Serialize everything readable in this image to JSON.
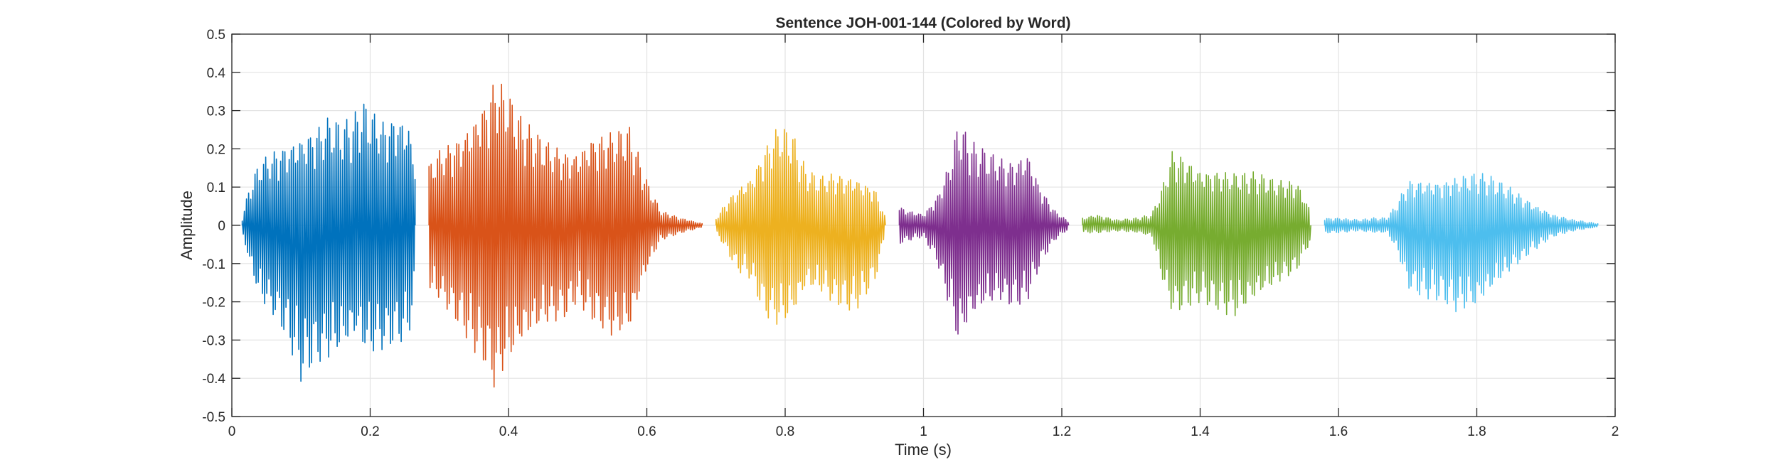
{
  "chart_data": {
    "type": "line",
    "title": "Sentence JOH-001-144 (Colored by Word)",
    "xlabel": "Time (s)",
    "ylabel": "Amplitude",
    "xlim": [
      0,
      2
    ],
    "ylim": [
      -0.5,
      0.5
    ],
    "xticks": [
      0,
      0.2,
      0.4,
      0.6,
      0.8,
      1,
      1.2,
      1.4,
      1.6,
      1.8,
      2
    ],
    "xtick_labels": [
      "0",
      "0.2",
      "0.4",
      "0.6",
      "0.8",
      "1",
      "1.2",
      "1.4",
      "1.6",
      "1.8",
      "2"
    ],
    "yticks": [
      -0.5,
      -0.4,
      -0.3,
      -0.2,
      -0.1,
      0,
      0.1,
      0.2,
      0.3,
      0.4,
      0.5
    ],
    "ytick_labels": [
      "-0.5",
      "-0.4",
      "-0.3",
      "-0.2",
      "-0.1",
      "0",
      "0.1",
      "0.2",
      "0.3",
      "0.4",
      "0.5"
    ],
    "grid": true,
    "legend": false,
    "series": [
      {
        "color": "#0072BD",
        "start": 0.015,
        "end": 0.265,
        "envelope": {
          "t": [
            0.015,
            0.025,
            0.04,
            0.06,
            0.08,
            0.1,
            0.12,
            0.14,
            0.16,
            0.18,
            0.19,
            0.2,
            0.22,
            0.24,
            0.255,
            0.265
          ],
          "max": [
            0.02,
            0.1,
            0.17,
            0.2,
            0.22,
            0.24,
            0.26,
            0.29,
            0.27,
            0.3,
            0.33,
            0.31,
            0.28,
            0.3,
            0.28,
            0.18
          ],
          "min": [
            -0.02,
            -0.1,
            -0.2,
            -0.24,
            -0.3,
            -0.41,
            -0.37,
            -0.36,
            -0.34,
            -0.3,
            -0.34,
            -0.35,
            -0.33,
            -0.31,
            -0.3,
            -0.18
          ]
        }
      },
      {
        "color": "#D95319",
        "start": 0.285,
        "end": 0.68,
        "envelope": {
          "t": [
            0.285,
            0.3,
            0.33,
            0.35,
            0.37,
            0.38,
            0.395,
            0.42,
            0.45,
            0.48,
            0.5,
            0.52,
            0.55,
            0.575,
            0.6,
            0.62,
            0.65,
            0.68
          ],
          "max": [
            0.16,
            0.2,
            0.24,
            0.29,
            0.35,
            0.4,
            0.37,
            0.28,
            0.23,
            0.2,
            0.2,
            0.24,
            0.25,
            0.26,
            0.12,
            0.04,
            0.02,
            0.005
          ],
          "min": [
            -0.18,
            -0.2,
            -0.27,
            -0.33,
            -0.38,
            -0.44,
            -0.38,
            -0.32,
            -0.27,
            -0.25,
            -0.2,
            -0.25,
            -0.3,
            -0.29,
            -0.12,
            -0.04,
            -0.02,
            -0.005
          ]
        }
      },
      {
        "color": "#EDB120",
        "start": 0.7,
        "end": 0.945,
        "envelope": {
          "t": [
            0.7,
            0.71,
            0.73,
            0.75,
            0.77,
            0.79,
            0.81,
            0.83,
            0.85,
            0.87,
            0.9,
            0.93,
            0.945
          ],
          "max": [
            0.02,
            0.05,
            0.1,
            0.13,
            0.21,
            0.27,
            0.25,
            0.15,
            0.13,
            0.14,
            0.13,
            0.1,
            0.02
          ],
          "min": [
            -0.02,
            -0.05,
            -0.12,
            -0.14,
            -0.24,
            -0.27,
            -0.25,
            -0.17,
            -0.18,
            -0.21,
            -0.23,
            -0.15,
            -0.02
          ]
        }
      },
      {
        "color": "#7E2F8E",
        "start": 0.965,
        "end": 1.21,
        "envelope": {
          "t": [
            0.965,
            0.98,
            1.0,
            1.02,
            1.04,
            1.05,
            1.07,
            1.09,
            1.11,
            1.13,
            1.15,
            1.17,
            1.19,
            1.21
          ],
          "max": [
            0.05,
            0.04,
            0.03,
            0.08,
            0.18,
            0.28,
            0.22,
            0.2,
            0.18,
            0.17,
            0.2,
            0.1,
            0.04,
            0.01
          ],
          "min": [
            -0.05,
            -0.04,
            -0.03,
            -0.1,
            -0.24,
            -0.32,
            -0.25,
            -0.22,
            -0.2,
            -0.22,
            -0.2,
            -0.1,
            -0.04,
            -0.01
          ]
        }
      },
      {
        "color": "#77AC30",
        "start": 1.23,
        "end": 1.56,
        "envelope": {
          "t": [
            1.23,
            1.25,
            1.28,
            1.31,
            1.33,
            1.345,
            1.36,
            1.38,
            1.4,
            1.42,
            1.45,
            1.48,
            1.51,
            1.54,
            1.56
          ],
          "max": [
            0.02,
            0.03,
            0.015,
            0.02,
            0.03,
            0.1,
            0.2,
            0.18,
            0.15,
            0.15,
            0.14,
            0.14,
            0.12,
            0.12,
            0.04
          ],
          "min": [
            -0.02,
            -0.02,
            -0.015,
            -0.02,
            -0.03,
            -0.15,
            -0.24,
            -0.22,
            -0.2,
            -0.22,
            -0.25,
            -0.2,
            -0.16,
            -0.12,
            -0.04
          ]
        }
      },
      {
        "color": "#4DBEEE",
        "start": 1.58,
        "end": 1.975,
        "envelope": {
          "t": [
            1.58,
            1.6,
            1.63,
            1.65,
            1.67,
            1.685,
            1.7,
            1.72,
            1.75,
            1.77,
            1.8,
            1.82,
            1.85,
            1.88,
            1.91,
            1.94,
            1.975
          ],
          "max": [
            0.02,
            0.02,
            0.015,
            0.02,
            0.02,
            0.06,
            0.12,
            0.12,
            0.12,
            0.13,
            0.14,
            0.13,
            0.1,
            0.06,
            0.03,
            0.015,
            0.005
          ],
          "min": [
            -0.02,
            -0.02,
            -0.015,
            -0.02,
            -0.02,
            -0.07,
            -0.17,
            -0.19,
            -0.2,
            -0.23,
            -0.22,
            -0.18,
            -0.12,
            -0.07,
            -0.03,
            -0.015,
            -0.005
          ]
        }
      }
    ]
  }
}
